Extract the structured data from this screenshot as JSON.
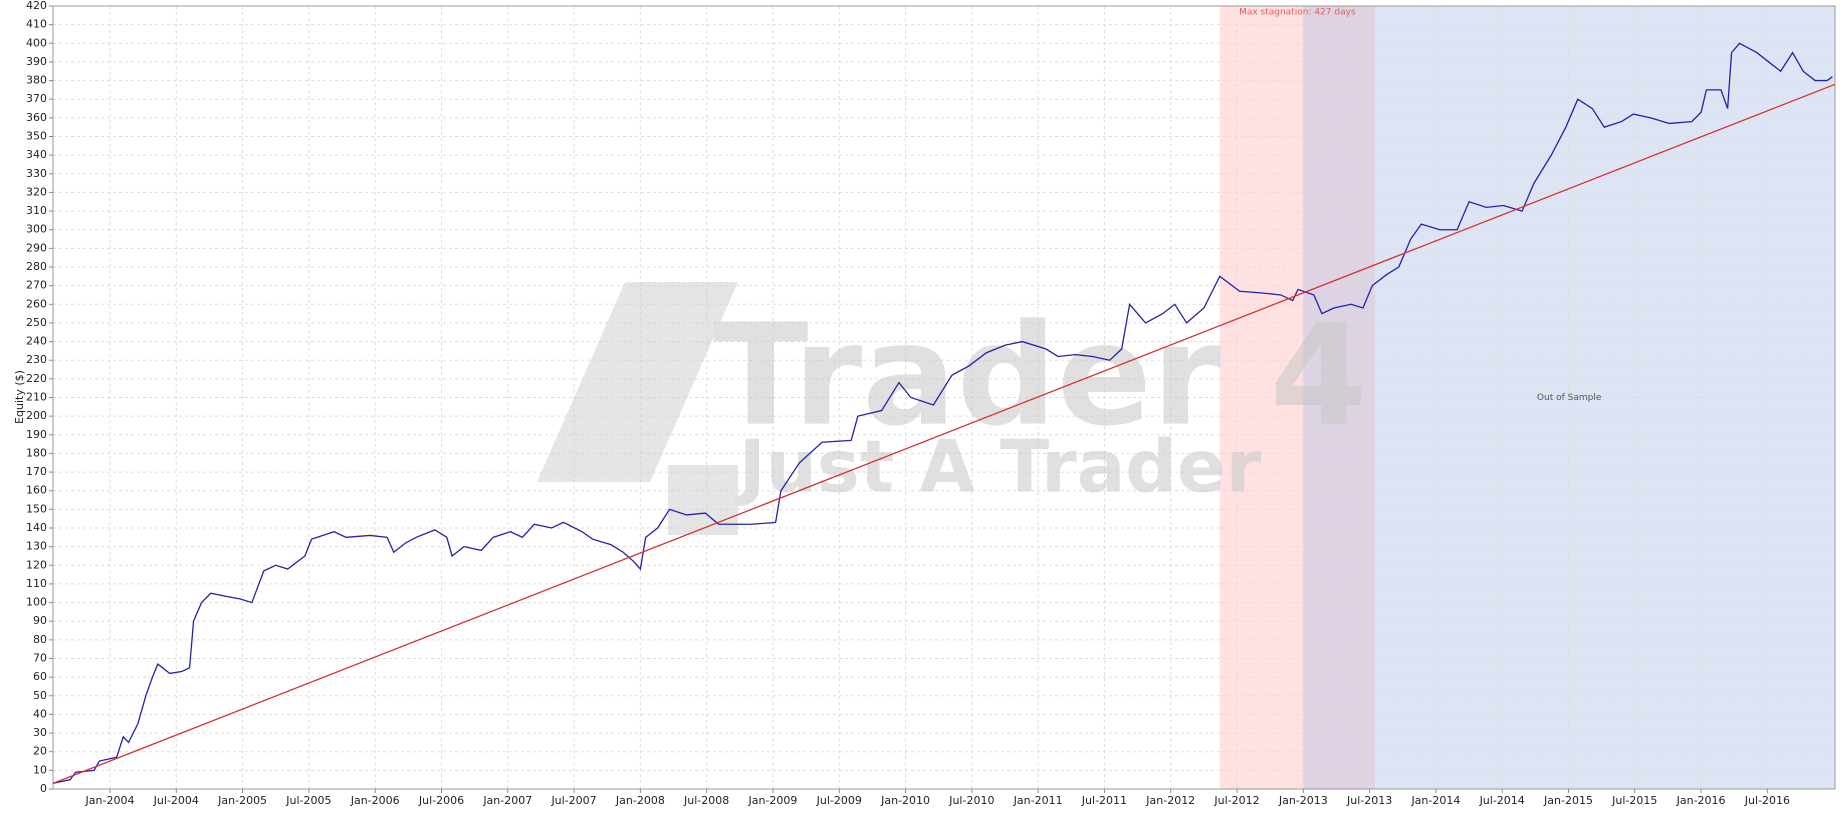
{
  "chart_data": {
    "type": "line",
    "y_label": "Equity ($)",
    "watermark": [
      "Trader 4",
      "Just A Trader"
    ],
    "xlim": [
      2003.57,
      2017.01
    ],
    "ylim": [
      0,
      420
    ],
    "xticks": [
      {
        "value": 2004.0,
        "label": "Jan-2004"
      },
      {
        "value": 2004.5,
        "label": "Jul-2004"
      },
      {
        "value": 2005.0,
        "label": "Jan-2005"
      },
      {
        "value": 2005.5,
        "label": "Jul-2005"
      },
      {
        "value": 2006.0,
        "label": "Jan-2006"
      },
      {
        "value": 2006.5,
        "label": "Jul-2006"
      },
      {
        "value": 2007.0,
        "label": "Jan-2007"
      },
      {
        "value": 2007.5,
        "label": "Jul-2007"
      },
      {
        "value": 2008.0,
        "label": "Jan-2008"
      },
      {
        "value": 2008.5,
        "label": "Jul-2008"
      },
      {
        "value": 2009.0,
        "label": "Jan-2009"
      },
      {
        "value": 2009.5,
        "label": "Jul-2009"
      },
      {
        "value": 2010.0,
        "label": "Jan-2010"
      },
      {
        "value": 2010.5,
        "label": "Jul-2010"
      },
      {
        "value": 2011.0,
        "label": "Jan-2011"
      },
      {
        "value": 2011.5,
        "label": "Jul-2011"
      },
      {
        "value": 2012.0,
        "label": "Jan-2012"
      },
      {
        "value": 2012.5,
        "label": "Jul-2012"
      },
      {
        "value": 2013.0,
        "label": "Jan-2013"
      },
      {
        "value": 2013.5,
        "label": "Jul-2013"
      },
      {
        "value": 2014.0,
        "label": "Jan-2014"
      },
      {
        "value": 2014.5,
        "label": "Jul-2014"
      },
      {
        "value": 2015.0,
        "label": "Jan-2015"
      },
      {
        "value": 2015.5,
        "label": "Jul-2015"
      },
      {
        "value": 2016.0,
        "label": "Jan-2016"
      },
      {
        "value": 2016.5,
        "label": "Jul-2016"
      }
    ],
    "yticks": [
      0,
      10,
      20,
      30,
      40,
      50,
      60,
      70,
      80,
      90,
      100,
      110,
      120,
      130,
      140,
      150,
      160,
      170,
      180,
      190,
      200,
      210,
      220,
      230,
      240,
      250,
      260,
      270,
      280,
      290,
      300,
      310,
      320,
      330,
      340,
      350,
      360,
      370,
      380,
      390,
      400,
      410,
      420
    ],
    "grid": true,
    "regions": [
      {
        "label": "Max stagnation: 427 days",
        "start": 2012.37,
        "end": 2013.54,
        "color": "#ffb4b4",
        "label_color": "#e06060",
        "label_pos": "top"
      },
      {
        "label": "Out of Sample",
        "start": 2013.0,
        "end": 2017.01,
        "color": "#aabde6",
        "label_color": "#555555",
        "label_pos": "middle"
      }
    ],
    "series": [
      {
        "color": "#2222aa",
        "x": [
          2003.57,
          2003.7,
          2003.74,
          2003.88,
          2003.92,
          2004.05,
          2004.1,
          2004.14,
          2004.21,
          2004.27,
          2004.32,
          2004.36,
          2004.45,
          2004.54,
          2004.6,
          2004.63,
          2004.69,
          2004.76,
          2004.9,
          2004.98,
          2005.07,
          2005.16,
          2005.25,
          2005.34,
          2005.47,
          2005.52,
          2005.69,
          2005.78,
          2005.96,
          2006.09,
          2006.14,
          2006.23,
          2006.31,
          2006.45,
          2006.54,
          2006.58,
          2006.67,
          2006.8,
          2006.89,
          2007.02,
          2007.11,
          2007.2,
          2007.33,
          2007.42,
          2007.56,
          2007.64,
          2007.78,
          2007.87,
          2007.95,
          2008.0,
          2008.04,
          2008.13,
          2008.22,
          2008.35,
          2008.49,
          2008.59,
          2008.84,
          2009.02,
          2009.06,
          2009.2,
          2009.37,
          2009.59,
          2009.64,
          2009.82,
          2009.95,
          2010.04,
          2010.21,
          2010.35,
          2010.48,
          2010.61,
          2010.75,
          2010.88,
          2011.06,
          2011.15,
          2011.28,
          2011.41,
          2011.54,
          2011.63,
          2011.69,
          2011.81,
          2011.94,
          2012.03,
          2012.12,
          2012.25,
          2012.37,
          2012.52,
          2012.7,
          2012.83,
          2012.92,
          2012.96,
          2013.08,
          2013.14,
          2013.23,
          2013.36,
          2013.45,
          2013.52,
          2013.63,
          2013.72,
          2013.81,
          2013.89,
          2014.03,
          2014.16,
          2014.25,
          2014.38,
          2014.51,
          2014.65,
          2014.74,
          2014.87,
          2014.98,
          2015.07,
          2015.18,
          2015.27,
          2015.4,
          2015.49,
          2015.62,
          2015.76,
          2015.93,
          2016.0,
          2016.04,
          2016.15,
          2016.2,
          2016.23,
          2016.29,
          2016.42,
          2016.51,
          2016.6,
          2016.69,
          2016.77,
          2016.86,
          2016.95,
          2016.99
        ],
        "values": [
          3,
          5,
          9,
          10,
          15,
          17,
          28,
          25,
          35,
          50,
          60,
          67,
          62,
          63,
          65,
          90,
          100,
          105,
          103,
          102,
          100,
          117,
          120,
          118,
          125,
          134,
          138,
          135,
          136,
          135,
          127,
          132,
          135,
          139,
          135,
          125,
          130,
          128,
          135,
          138,
          135,
          142,
          140,
          143,
          138,
          134,
          131,
          127,
          122,
          118,
          135,
          140,
          150,
          147,
          148,
          142,
          142,
          143,
          160,
          175,
          186,
          187,
          200,
          203,
          218,
          210,
          206,
          222,
          227,
          234,
          238,
          240,
          236,
          232,
          233,
          232,
          230,
          236,
          260,
          250,
          255,
          260,
          250,
          258,
          275,
          267,
          266,
          265,
          262,
          268,
          265,
          255,
          258,
          260,
          258,
          270,
          276,
          280,
          295,
          303,
          300,
          300,
          315,
          312,
          313,
          310,
          325,
          340,
          355,
          370,
          365,
          355,
          358,
          362,
          360,
          357,
          358,
          363,
          375,
          375,
          365,
          395,
          400,
          395,
          390,
          385,
          395,
          385,
          380,
          380,
          382
        ]
      },
      {
        "color": "#d83030",
        "x": [
          2003.57,
          2017.01
        ],
        "values": [
          3,
          378
        ]
      }
    ]
  }
}
